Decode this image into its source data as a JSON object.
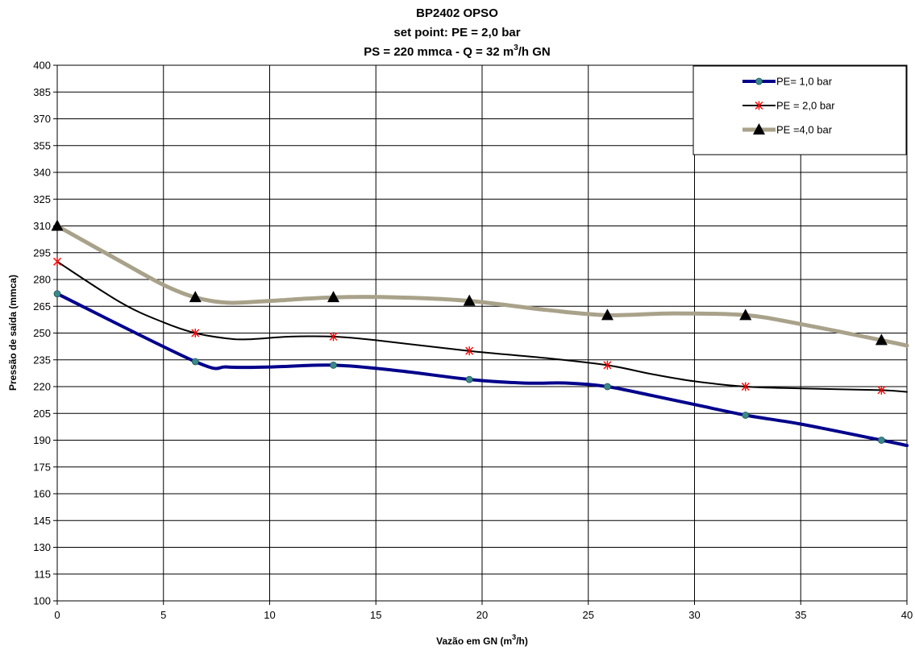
{
  "chart_data": {
    "type": "line",
    "title_lines": [
      "BP2402 OPSO",
      "set point: PE = 2,0 bar",
      {
        "pre": "PS = 220 mmca - Q = 32 m",
        "sup": "3",
        "post": "/h GN"
      }
    ],
    "xlabel": {
      "pre": "Vazão em GN (m",
      "sup": "3",
      "post": "/h)"
    },
    "ylabel": "Pressão de saída (mmca)",
    "xlim": [
      0,
      40
    ],
    "ylim": [
      100,
      400
    ],
    "xticks": [
      0,
      5,
      10,
      15,
      20,
      25,
      30,
      35,
      40
    ],
    "yticks": [
      100,
      115,
      130,
      145,
      160,
      175,
      190,
      205,
      220,
      235,
      250,
      265,
      280,
      295,
      310,
      325,
      340,
      355,
      370,
      385,
      400
    ],
    "grid": true,
    "legend_position": "top-right",
    "series": [
      {
        "name": "PE= 1,0 bar",
        "color": "#00008B",
        "marker": "circle",
        "marker_color": "#3A8A8A",
        "line_width": 4,
        "x": [
          0,
          6.5,
          13,
          19.4,
          25.9,
          32.4,
          38.8
        ],
        "y": [
          272,
          234,
          232,
          224,
          220,
          204,
          190
        ],
        "line_x": [
          0,
          6.5,
          8,
          10,
          13,
          16,
          19.4,
          22,
          24,
          25.9,
          28,
          30,
          32.4,
          35,
          38.8,
          40
        ],
        "line_y": [
          272,
          234,
          231,
          231,
          232,
          229,
          224,
          222,
          222,
          220,
          215,
          210,
          204,
          199,
          190,
          187
        ]
      },
      {
        "name": "PE = 2,0 bar",
        "color": "#000000",
        "marker": "asterisk",
        "marker_color": "#FF0000",
        "line_width": 2,
        "x": [
          0,
          6.5,
          13,
          19.4,
          25.9,
          32.4,
          38.8
        ],
        "y": [
          290,
          250,
          248,
          240,
          232,
          220,
          218
        ],
        "line_x": [
          0,
          3,
          5,
          6.5,
          8,
          9,
          11,
          13,
          15,
          19.4,
          23,
          25.9,
          28,
          30,
          32.4,
          35,
          38.8,
          40
        ],
        "line_y": [
          290,
          267,
          256,
          250,
          247,
          246.5,
          248,
          248,
          246,
          240,
          236,
          232,
          227,
          223,
          220,
          219,
          218,
          217
        ]
      },
      {
        "name": "PE =4,0 bar",
        "color": "#A9A28A",
        "marker": "triangle",
        "marker_color": "#000000",
        "line_width": 5,
        "x": [
          0,
          6.5,
          13,
          19.4,
          25.9,
          32.4,
          38.8
        ],
        "y": [
          310,
          270,
          270,
          268,
          260,
          260,
          246
        ],
        "line_x": [
          0,
          3,
          5,
          6.5,
          8,
          10,
          13,
          16,
          19.4,
          23,
          25.9,
          29,
          32.4,
          35,
          38.8,
          40
        ],
        "line_y": [
          310,
          290,
          277,
          270,
          267,
          268,
          270,
          270,
          268,
          263,
          260,
          261,
          260,
          255,
          246,
          243
        ]
      }
    ]
  }
}
